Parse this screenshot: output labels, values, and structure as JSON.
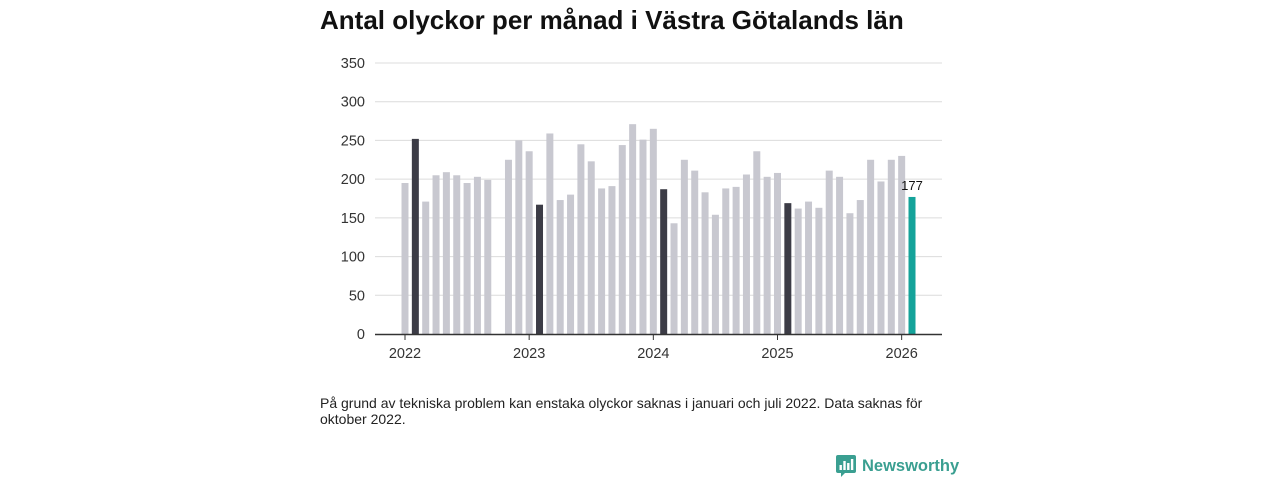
{
  "chart_data": {
    "type": "bar",
    "title": "Antal olyckor per månad i Västra Götalands län",
    "xlabel": "",
    "ylabel": "",
    "ylim": [
      0,
      350
    ],
    "yticks": [
      0,
      50,
      100,
      150,
      200,
      250,
      300,
      350
    ],
    "grid": true,
    "years": [
      {
        "label": "2022",
        "values": [
          195,
          252,
          171,
          205,
          209,
          205,
          195,
          203,
          199,
          null,
          225,
          250
        ]
      },
      {
        "label": "2023",
        "values": [
          236,
          167,
          259,
          173,
          180,
          245,
          223,
          188,
          191,
          244,
          271,
          251
        ]
      },
      {
        "label": "2024",
        "values": [
          265,
          187,
          143,
          225,
          211,
          183,
          154,
          188,
          190,
          206,
          236,
          203
        ]
      },
      {
        "label": "2025",
        "values": [
          208,
          169,
          162,
          171,
          163,
          211,
          203,
          156,
          173,
          225,
          197,
          225
        ]
      },
      {
        "label": "2026",
        "values": [
          230,
          177
        ]
      }
    ]
  },
  "note": "På grund av tekniska problem kan enstaka olyckor saknas i januari och juli 2022. Data saknas för oktober 2022.",
  "brand": {
    "name": "Newsworthy",
    "icon": "newsworthy-logo-icon"
  },
  "colors": {
    "bar": "#c8c8d0",
    "bar_same_month": "#3c3c46",
    "bar_latest": "#14a39a",
    "grid": "#dcdcdc",
    "axis": "#333333",
    "tick_text": "#333333",
    "value_text": "#111111",
    "brand": "#3a9f91"
  }
}
